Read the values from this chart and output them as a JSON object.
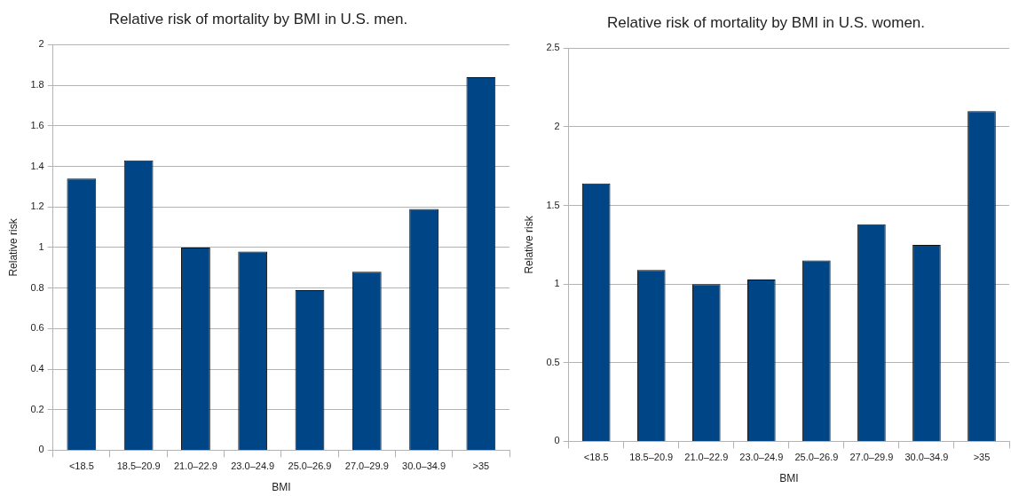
{
  "chart_data": [
    {
      "type": "bar",
      "title": "Relative risk of mortality by BMI in U.S. men.",
      "xlabel": "BMI",
      "ylabel": "Relative risk",
      "categories": [
        "<18.5",
        "18.5–20.9",
        "21.0–22.9",
        "23.0–24.9",
        "25.0–26.9",
        "27.0–29.9",
        "30.0–34.9",
        ">35"
      ],
      "values": [
        1.34,
        1.43,
        1.0,
        0.98,
        0.79,
        0.88,
        1.19,
        1.84
      ],
      "color": "#004586",
      "ylim": [
        0,
        2
      ],
      "yticks": [
        0,
        0.2,
        0.4,
        0.6,
        0.8,
        1,
        1.2,
        1.4,
        1.6,
        1.8,
        2
      ],
      "grid": "y"
    },
    {
      "type": "bar",
      "title": "Relative risk of mortality by BMI in U.S. women.",
      "xlabel": "BMI",
      "ylabel": "Relative risk",
      "categories": [
        "<18.5",
        "18.5–20.9",
        "21.0–22.9",
        "23.0–24.9",
        "25.0–26.9",
        "27.0–29.9",
        "30.0–34.9",
        ">35"
      ],
      "values": [
        1.64,
        1.09,
        1.0,
        1.03,
        1.15,
        1.38,
        1.25,
        2.1
      ],
      "color": "#004586",
      "ylim": [
        0,
        2.5
      ],
      "yticks": [
        0,
        0.5,
        1,
        1.5,
        2,
        2.5
      ],
      "grid": "y"
    }
  ]
}
